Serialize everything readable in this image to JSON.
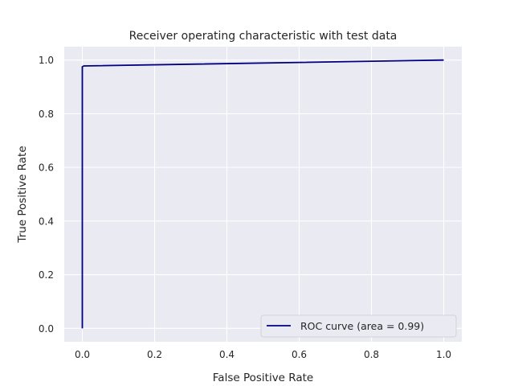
{
  "chart_data": {
    "type": "line",
    "title": "Receiver operating characteristic with test data",
    "xlabel": "False Positive Rate",
    "ylabel": "True Positive Rate",
    "xlim": [
      -0.05,
      1.05
    ],
    "ylim": [
      -0.05,
      1.05
    ],
    "x_ticks": [
      0.0,
      0.2,
      0.4,
      0.6,
      0.8,
      1.0
    ],
    "x_tick_labels": [
      "0.0",
      "0.2",
      "0.4",
      "0.6",
      "0.8",
      "1.0"
    ],
    "y_ticks": [
      0.0,
      0.2,
      0.4,
      0.6,
      0.8,
      1.0
    ],
    "y_tick_labels": [
      "0.0",
      "0.2",
      "0.4",
      "0.6",
      "0.8",
      "1.0"
    ],
    "grid": true,
    "legend_position": "lower-right",
    "series": [
      {
        "name": "ROC curve (area = 0.99)",
        "color": "#000080",
        "x": [
          0.0,
          0.0,
          0.004,
          1.0
        ],
        "y": [
          0.0,
          0.975,
          0.978,
          1.0
        ]
      }
    ],
    "colors": {
      "plot_background": "#eaeaf2",
      "grid": "#ffffff",
      "text": "#262626"
    }
  }
}
